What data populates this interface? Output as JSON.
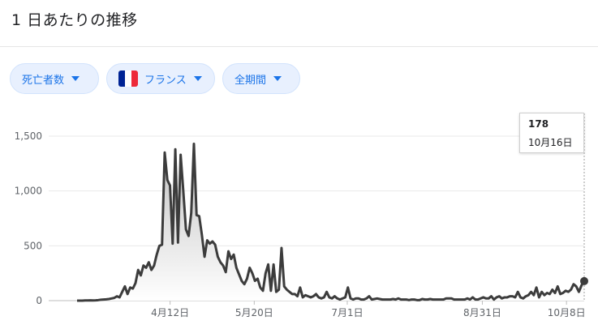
{
  "header": {
    "title": "1 日あたりの推移"
  },
  "filters": {
    "metric_label": "死亡者数",
    "country_label": "フランス",
    "period_label": "全期間",
    "country_flag": "french-flag-icon"
  },
  "colors": {
    "line": "#3c3c3c",
    "chip_bg": "#e8f0fe",
    "chip_text": "#1a73e8",
    "flag_blue": "#002395",
    "flag_white": "#ffffff",
    "flag_red": "#ed2939"
  },
  "tooltip": {
    "value": "178",
    "date": "10月16日"
  },
  "chart_data": {
    "type": "area",
    "title": "",
    "xlabel": "",
    "ylabel": "",
    "ylim": [
      0,
      1500
    ],
    "yticks": [
      "1,500",
      "1,000",
      "500",
      "0"
    ],
    "ytick_values": [
      1500,
      1000,
      500,
      0
    ],
    "xticks": [
      "4月12日",
      "5月20日",
      "7月1日",
      "8月31日",
      "10月8日"
    ],
    "xtick_days": [
      102,
      140,
      182,
      243,
      281
    ],
    "start_date": "2020-03-01",
    "end_date": "2020-10-16",
    "grid": true,
    "legend": "none",
    "series": [
      {
        "name": "",
        "values": [
          0,
          0,
          0,
          2,
          2,
          3,
          2,
          3,
          5,
          8,
          10,
          12,
          15,
          20,
          25,
          40,
          30,
          80,
          130,
          60,
          120,
          110,
          160,
          280,
          230,
          320,
          300,
          350,
          280,
          320,
          420,
          500,
          510,
          1350,
          1100,
          1050,
          520,
          1380,
          530,
          1330,
          1000,
          650,
          590,
          800,
          1430,
          780,
          770,
          600,
          400,
          550,
          520,
          540,
          510,
          400,
          350,
          320,
          260,
          450,
          380,
          420,
          300,
          240,
          180,
          150,
          200,
          300,
          250,
          180,
          200,
          120,
          90,
          250,
          330,
          90,
          330,
          80,
          100,
          480,
          130,
          100,
          80,
          60,
          60,
          40,
          120,
          30,
          50,
          40,
          30,
          40,
          60,
          30,
          20,
          30,
          80,
          30,
          20,
          40,
          20,
          10,
          20,
          30,
          120,
          20,
          10,
          20,
          20,
          10,
          10,
          20,
          40,
          10,
          15,
          20,
          15,
          10,
          10,
          10,
          10,
          15,
          10,
          20,
          10,
          10,
          10,
          5,
          10,
          10,
          5,
          5,
          15,
          10,
          10,
          15,
          10,
          10,
          10,
          10,
          10,
          20,
          20,
          20,
          10,
          10,
          10,
          10,
          10,
          20,
          10,
          30,
          10,
          10,
          20,
          30,
          20,
          20,
          40,
          10,
          30,
          40,
          20,
          30,
          30,
          40,
          40,
          30,
          80,
          30,
          20,
          40,
          50,
          80,
          50,
          120,
          30,
          80,
          50,
          70,
          60,
          100,
          70,
          130,
          60,
          70,
          90,
          80,
          100,
          150,
          130,
          80,
          140,
          178
        ]
      }
    ]
  }
}
